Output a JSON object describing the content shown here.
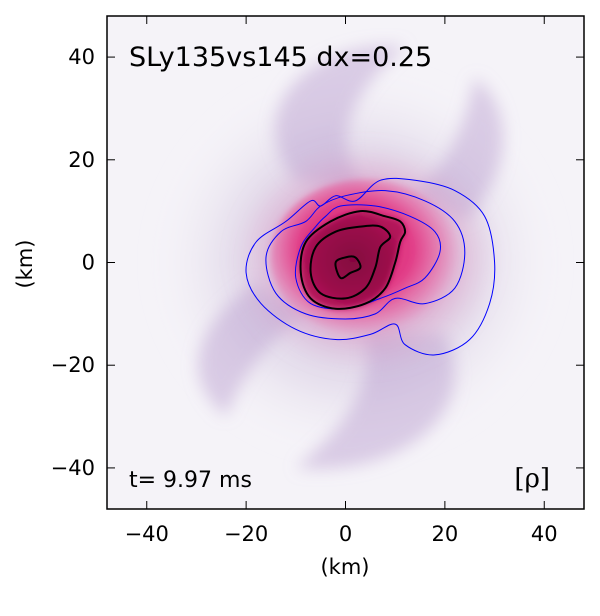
{
  "chart_data": {
    "type": "heatmap",
    "title": "SLy135vs145 dx=0.25",
    "time_label": "t= 9.97 ms",
    "variable_label": "[ρ]",
    "xlabel": "(km)",
    "ylabel": "(km)",
    "xlim": [
      -48,
      48
    ],
    "ylim": [
      -48,
      48
    ],
    "xticks": [
      -40,
      -20,
      0,
      20,
      40
    ],
    "yticks": [
      -40,
      -20,
      0,
      20,
      40
    ],
    "xtick_labels": [
      "−40",
      "−20",
      "0",
      "20",
      "40"
    ],
    "ytick_labels": [
      "−40",
      "−20",
      "0",
      "20",
      "40"
    ],
    "grid": false,
    "colors": {
      "background": "#f5f3f8",
      "outer_halo": "#c9b8d8",
      "envelope": "#d7aed0",
      "disk": "#e23a85",
      "core": "#9b0a4a",
      "inner_contour": "#0000ff",
      "core_contour": "#000000"
    },
    "blue_contours": [
      {
        "name": "outer",
        "points": [
          [
            -7,
            12
          ],
          [
            -12,
            8
          ],
          [
            -18,
            4
          ],
          [
            -20,
            -2
          ],
          [
            -17,
            -8
          ],
          [
            -10,
            -13
          ],
          [
            -2,
            -15
          ],
          [
            5,
            -14
          ],
          [
            10,
            -12
          ],
          [
            12,
            -16
          ],
          [
            18,
            -18
          ],
          [
            25,
            -15
          ],
          [
            29,
            -8
          ],
          [
            30,
            0
          ],
          [
            28,
            9
          ],
          [
            22,
            14
          ],
          [
            14,
            16
          ],
          [
            7,
            16
          ],
          [
            2,
            12
          ],
          [
            -2,
            13
          ],
          [
            -5,
            11
          ]
        ]
      },
      {
        "name": "middle",
        "points": [
          [
            -8,
            8
          ],
          [
            -13,
            6
          ],
          [
            -16,
            1
          ],
          [
            -14,
            -6
          ],
          [
            -8,
            -10
          ],
          [
            0,
            -11
          ],
          [
            6,
            -10
          ],
          [
            10,
            -7
          ],
          [
            16,
            -8
          ],
          [
            22,
            -5
          ],
          [
            24,
            2
          ],
          [
            22,
            8
          ],
          [
            16,
            12
          ],
          [
            8,
            14
          ],
          [
            0,
            13
          ],
          [
            -5,
            11
          ]
        ]
      },
      {
        "name": "inner",
        "points": [
          [
            -6,
            7
          ],
          [
            -9,
            3
          ],
          [
            -10,
            -3
          ],
          [
            -7,
            -8
          ],
          [
            0,
            -9
          ],
          [
            7,
            -7
          ],
          [
            12,
            -5
          ],
          [
            16,
            -3
          ],
          [
            19,
            2
          ],
          [
            18,
            6
          ],
          [
            13,
            9
          ],
          [
            6,
            11
          ],
          [
            -1,
            11
          ],
          [
            -4,
            9
          ]
        ]
      }
    ],
    "black_contours": [
      {
        "name": "outer",
        "points": [
          [
            -3,
            8
          ],
          [
            -8,
            4
          ],
          [
            -9,
            -2
          ],
          [
            -7,
            -7
          ],
          [
            -2,
            -9
          ],
          [
            4,
            -8
          ],
          [
            8,
            -5
          ],
          [
            10,
            0
          ],
          [
            11,
            4
          ],
          [
            12,
            6
          ],
          [
            11,
            8
          ],
          [
            8,
            9
          ],
          [
            3,
            10
          ]
        ]
      },
      {
        "name": "inner",
        "points": [
          [
            -2,
            6
          ],
          [
            -6,
            3
          ],
          [
            -7,
            -2
          ],
          [
            -5,
            -6
          ],
          [
            0,
            -7
          ],
          [
            4,
            -5
          ],
          [
            6,
            -1
          ],
          [
            7,
            3
          ],
          [
            9,
            5
          ],
          [
            7,
            7
          ],
          [
            3,
            7
          ]
        ]
      },
      {
        "name": "core",
        "points": [
          [
            -2,
            0
          ],
          [
            -1,
            -3
          ],
          [
            1,
            -2
          ],
          [
            3,
            -1
          ],
          [
            2,
            1
          ],
          [
            0,
            1
          ]
        ]
      }
    ]
  }
}
